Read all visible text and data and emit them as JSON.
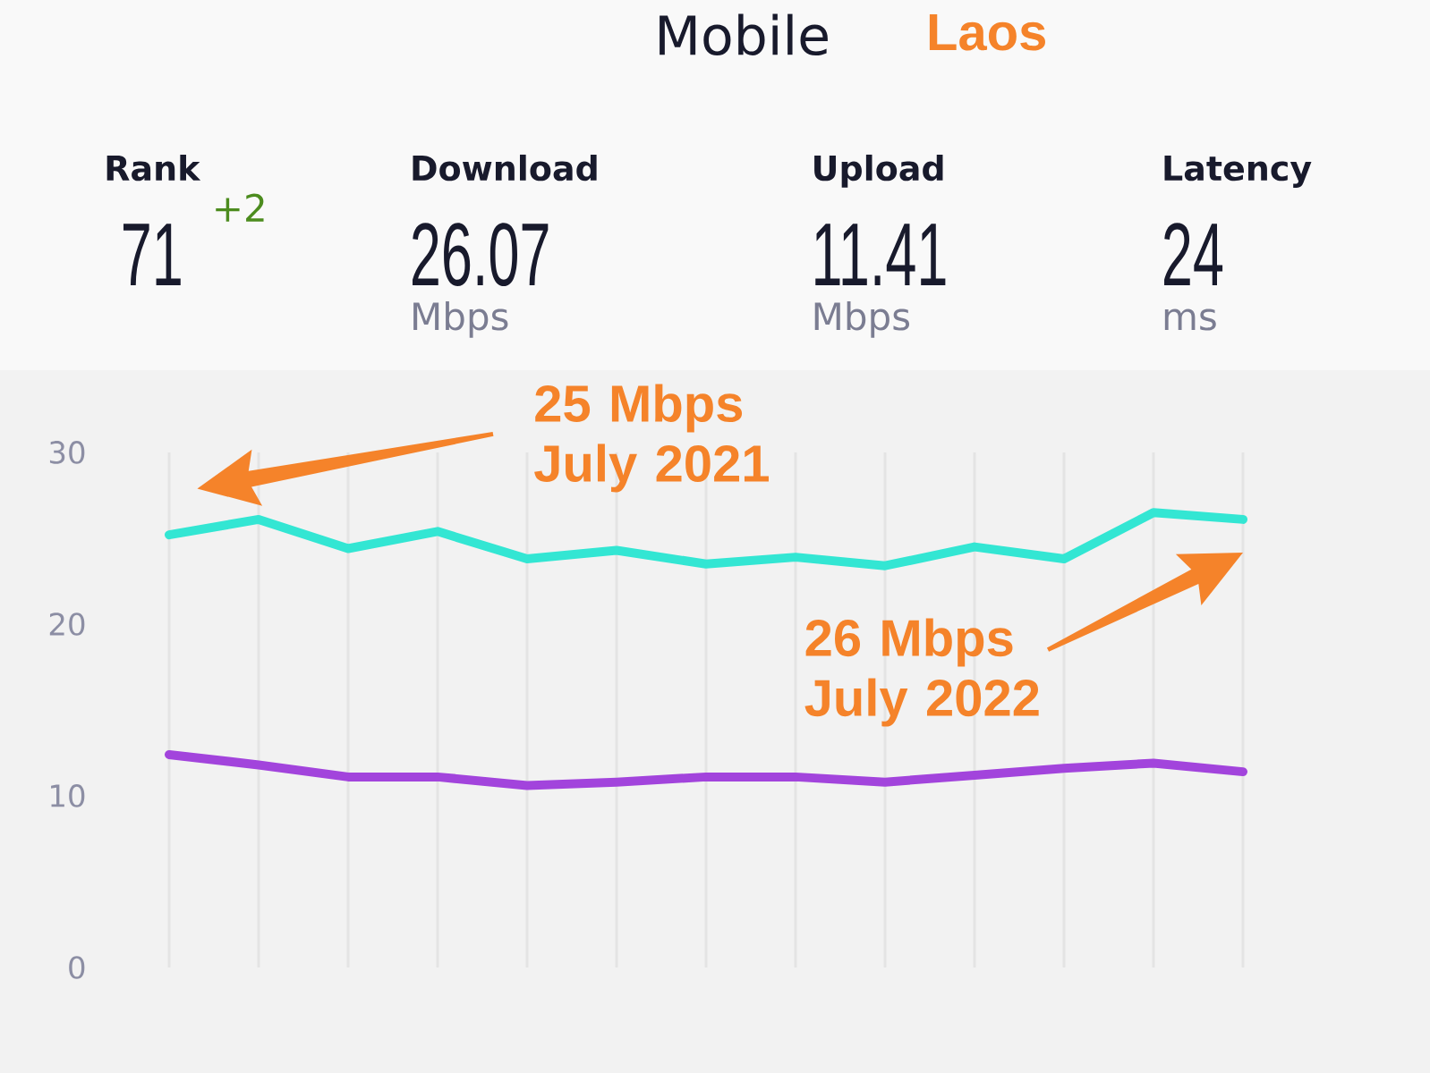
{
  "chart_data": {
    "type": "line",
    "title": "Mobile",
    "subtitle": "Laos",
    "categories": [
      null,
      null,
      null,
      null,
      null,
      null,
      null,
      null,
      null,
      null,
      null,
      null,
      null
    ],
    "series": [
      {
        "color": "#33e6d3",
        "values": [
          25.2,
          26.1,
          24.4,
          25.4,
          23.8,
          24.3,
          23.5,
          23.9,
          23.4,
          24.5,
          23.8,
          26.5,
          26.1
        ]
      },
      {
        "color": "#a244dc",
        "values": [
          12.4,
          11.8,
          11.1,
          11.1,
          10.6,
          10.8,
          11.1,
          11.1,
          10.8,
          11.2,
          11.6,
          11.9,
          11.4
        ]
      }
    ],
    "ylim": [
      0,
      30
    ],
    "yticks": [
      0,
      10,
      20,
      30
    ],
    "grid": "x",
    "annotations": [
      "Rank",
      "71",
      "+2",
      "Download",
      "26.07",
      "Mbps",
      "Upload",
      "11.41",
      "Mbps",
      "Latency",
      "24",
      "ms",
      "25 Mbps July 2021",
      "26 Mbps July 2022"
    ]
  }
}
